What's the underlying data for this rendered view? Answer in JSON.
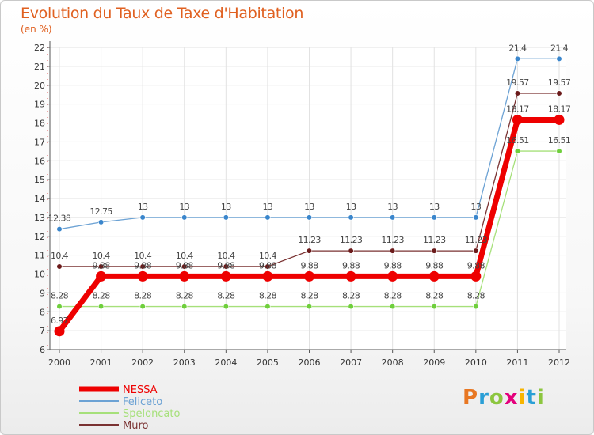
{
  "header": {
    "title": "Evolution du Taux de Taxe d'Habitation",
    "unit": "(en %)"
  },
  "logo": {
    "letters": [
      "P",
      "r",
      "o",
      "x",
      "i",
      "t",
      "i"
    ],
    "colors": [
      "#e87722",
      "#2a9fd6",
      "#8cc63f",
      "#e4007c",
      "#f7b500",
      "#2a9fd6",
      "#8cc63f"
    ]
  },
  "chart_data": {
    "type": "line",
    "title": "Evolution du Taux de Taxe d'Habitation",
    "ylabel": "(en %)",
    "xlabel": "",
    "categories": [
      "2000",
      "2001",
      "2002",
      "2003",
      "2004",
      "2005",
      "2006",
      "2007",
      "2008",
      "2009",
      "2010",
      "2011",
      "2012"
    ],
    "ylim": [
      6,
      22
    ],
    "yticks": [
      "6",
      "7",
      "8",
      "9",
      "10",
      "11",
      "12",
      "13",
      "14",
      "15",
      "16",
      "17",
      "18",
      "19",
      "20",
      "21",
      "22"
    ],
    "series": [
      {
        "name": "Feliceto",
        "color": "#6ca2d4",
        "marker": "#3a86cc",
        "values": [
          12.38,
          12.75,
          13,
          13,
          13,
          13,
          13,
          13,
          13,
          13,
          13,
          21.4,
          21.4
        ],
        "labels": [
          "12.38",
          "12.75",
          "13",
          "13",
          "13",
          "13",
          "13",
          "13",
          "13",
          "13",
          "13",
          "21.4",
          "21.4"
        ]
      },
      {
        "name": "Speloncato",
        "color": "#a6e07a",
        "marker": "#6fcf3c",
        "values": [
          8.28,
          8.28,
          8.28,
          8.28,
          8.28,
          8.28,
          8.28,
          8.28,
          8.28,
          8.28,
          8.28,
          16.51,
          16.51
        ],
        "labels": [
          "8.28",
          "8.28",
          "8.28",
          "8.28",
          "8.28",
          "8.28",
          "8.28",
          "8.28",
          "8.28",
          "8.28",
          "8.28",
          "16.51",
          "16.51"
        ]
      },
      {
        "name": "Muro",
        "color": "#7a3232",
        "marker": "#6b1a1a",
        "values": [
          10.4,
          10.4,
          10.4,
          10.4,
          10.4,
          10.4,
          11.23,
          11.23,
          11.23,
          11.23,
          11.23,
          19.57,
          19.57
        ],
        "labels": [
          "10.4",
          "10.4",
          "10.4",
          "10.4",
          "10.4",
          "10.4",
          "11.23",
          "11.23",
          "11.23",
          "11.23",
          "11.23",
          "19.57",
          "19.57"
        ]
      },
      {
        "name": "NESSA",
        "color": "#ee0000",
        "marker": "#ee0000",
        "values": [
          6.97,
          9.88,
          9.88,
          9.88,
          9.88,
          9.88,
          9.88,
          9.88,
          9.88,
          9.88,
          9.88,
          18.17,
          18.17
        ],
        "labels": [
          "6.97",
          "9.88",
          "9.88",
          "9.88",
          "9.88",
          "9.88",
          "9.88",
          "9.88",
          "9.88",
          "9.88",
          "9.88",
          "18.17",
          "18.17"
        ]
      }
    ],
    "legend": [
      "NESSA",
      "Feliceto",
      "Speloncato",
      "Muro"
    ],
    "legend_position": "bottom-left"
  }
}
